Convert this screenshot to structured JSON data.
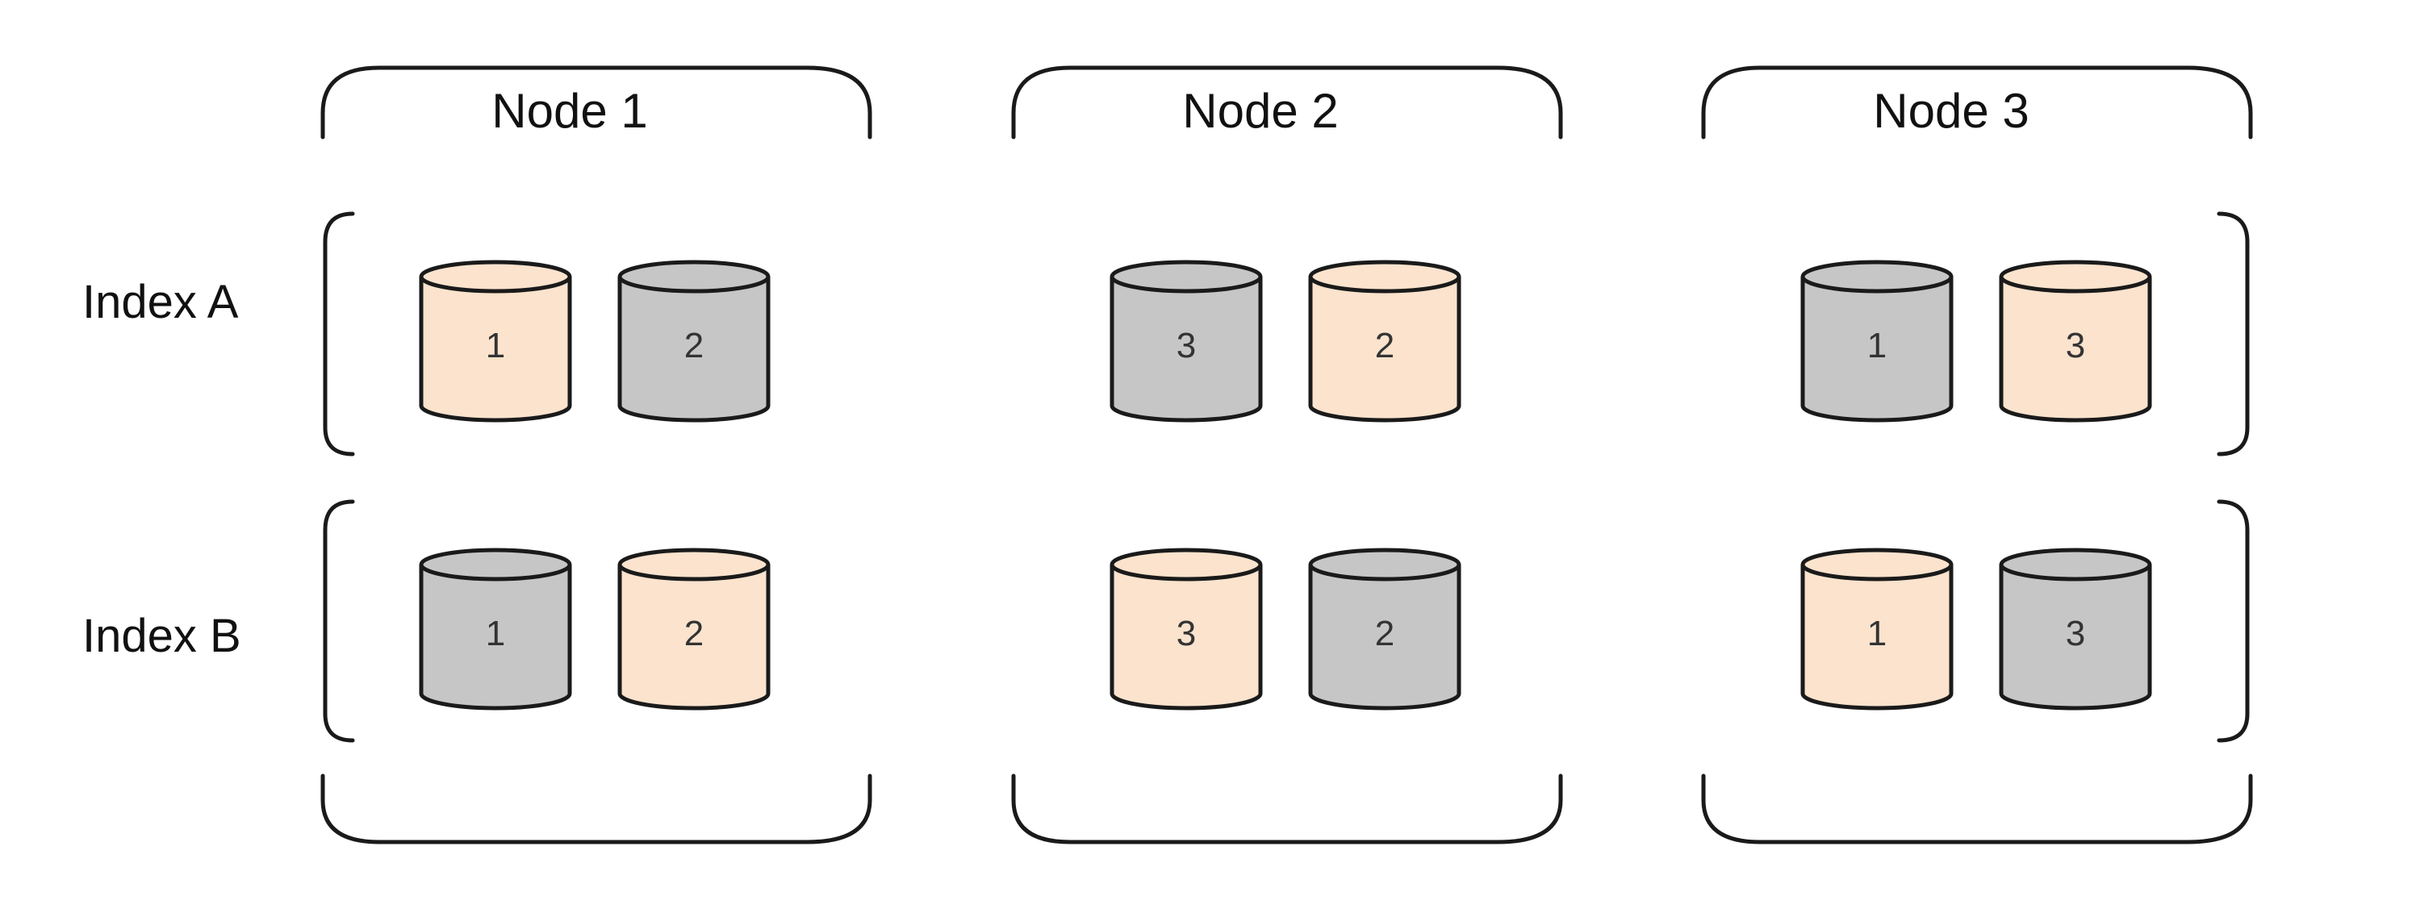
{
  "nodes": [
    {
      "label": "Node 1"
    },
    {
      "label": "Node 2"
    },
    {
      "label": "Node 3"
    }
  ],
  "indices": [
    {
      "label": "Index A"
    },
    {
      "label": "Index B"
    }
  ],
  "colors": {
    "primary_shard": "#fbe3cd",
    "replica_shard": "#c6c6c6",
    "outline": "#1a1a1a"
  },
  "shards": [
    [
      [
        {
          "number": "1",
          "kind": "primary"
        },
        {
          "number": "2",
          "kind": "replica"
        }
      ],
      [
        {
          "number": "3",
          "kind": "replica"
        },
        {
          "number": "2",
          "kind": "primary"
        }
      ],
      [
        {
          "number": "1",
          "kind": "replica"
        },
        {
          "number": "3",
          "kind": "primary"
        }
      ]
    ],
    [
      [
        {
          "number": "1",
          "kind": "replica"
        },
        {
          "number": "2",
          "kind": "primary"
        }
      ],
      [
        {
          "number": "3",
          "kind": "primary"
        },
        {
          "number": "2",
          "kind": "replica"
        }
      ],
      [
        {
          "number": "1",
          "kind": "primary"
        },
        {
          "number": "3",
          "kind": "replica"
        }
      ]
    ]
  ]
}
